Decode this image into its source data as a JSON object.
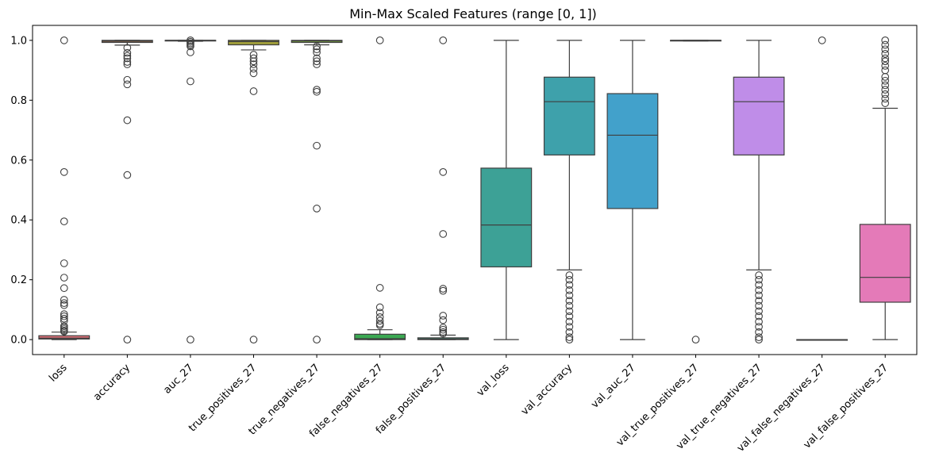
{
  "chart_data": {
    "type": "box",
    "title": "Min-Max Scaled Features (range [0, 1])",
    "xlabel": "",
    "ylabel": "",
    "ylim": [
      -0.05,
      1.05
    ],
    "yticks": [
      "0.0",
      "0.2",
      "0.4",
      "0.6",
      "0.8",
      "1.0"
    ],
    "grid": false,
    "legend": "none",
    "series": [
      {
        "name": "loss",
        "color": "#e1727a",
        "q1": 0.002,
        "median": 0.005,
        "q3": 0.013,
        "whisker_low": 0.0,
        "whisker_high": 0.025,
        "outliers": [
          1.0,
          0.56,
          0.395,
          0.255,
          0.207,
          0.172,
          0.133,
          0.122,
          0.115,
          0.085,
          0.078,
          0.07,
          0.063,
          0.045,
          0.04,
          0.035,
          0.03,
          0.027
        ]
      },
      {
        "name": "accuracy",
        "color": "#d08a58",
        "q1": 0.993,
        "median": 0.997,
        "q3": 1.0,
        "whisker_low": 0.984,
        "whisker_high": 1.0,
        "outliers": [
          0.975,
          0.958,
          0.948,
          0.94,
          0.928,
          0.92,
          0.868,
          0.853,
          0.733,
          0.55,
          0.0
        ]
      },
      {
        "name": "auc_27",
        "color": "#b79a48",
        "q1": 0.999,
        "median": 1.0,
        "q3": 1.0,
        "whisker_low": 0.997,
        "whisker_high": 1.0,
        "outliers": [
          1.0,
          0.995,
          0.99,
          0.985,
          0.98,
          0.96,
          0.863,
          0.0
        ]
      },
      {
        "name": "true_positives_27",
        "color": "#a09e3a",
        "q1": 0.985,
        "median": 0.996,
        "q3": 1.0,
        "whisker_low": 0.968,
        "whisker_high": 1.0,
        "outliers": [
          0.952,
          0.94,
          0.93,
          0.92,
          0.905,
          0.89,
          0.83,
          0.0
        ]
      },
      {
        "name": "true_negatives_27",
        "color": "#7aa73e",
        "q1": 0.993,
        "median": 0.998,
        "q3": 1.0,
        "whisker_low": 0.985,
        "whisker_high": 1.0,
        "outliers": [
          0.98,
          0.97,
          0.96,
          0.94,
          0.93,
          0.92,
          0.835,
          0.828,
          0.648,
          0.438,
          0.0
        ]
      },
      {
        "name": "false_negatives_27",
        "color": "#3ba852",
        "q1": 0.0,
        "median": 0.003,
        "q3": 0.018,
        "whisker_low": 0.0,
        "whisker_high": 0.033,
        "outliers": [
          1.0,
          0.173,
          0.108,
          0.09,
          0.075,
          0.063,
          0.053,
          0.048
        ]
      },
      {
        "name": "false_positives_27",
        "color": "#3ca07f",
        "q1": 0.0,
        "median": 0.002,
        "q3": 0.006,
        "whisker_low": 0.0,
        "whisker_high": 0.015,
        "outliers": [
          1.0,
          0.56,
          0.353,
          0.17,
          0.163,
          0.08,
          0.065,
          0.04,
          0.033,
          0.025,
          0.02
        ]
      },
      {
        "name": "val_loss",
        "color": "#3da196",
        "q1": 0.243,
        "median": 0.383,
        "q3": 0.573,
        "whisker_low": 0.0,
        "whisker_high": 1.0,
        "outliers": []
      },
      {
        "name": "val_accuracy",
        "color": "#3ea1ab",
        "q1": 0.617,
        "median": 0.795,
        "q3": 0.877,
        "whisker_low": 0.233,
        "whisker_high": 1.0,
        "outliers": [
          0.215,
          0.2,
          0.183,
          0.165,
          0.148,
          0.13,
          0.113,
          0.095,
          0.078,
          0.06,
          0.043,
          0.025,
          0.008,
          0.0
        ]
      },
      {
        "name": "val_auc_27",
        "color": "#42a1cb",
        "q1": 0.438,
        "median": 0.683,
        "q3": 0.822,
        "whisker_low": 0.0,
        "whisker_high": 1.0,
        "outliers": []
      },
      {
        "name": "val_true_positives_27",
        "color": "#7b8ee0",
        "q1": 0.999,
        "median": 1.0,
        "q3": 1.0,
        "whisker_low": 0.998,
        "whisker_high": 1.0,
        "outliers": [
          0.0
        ]
      },
      {
        "name": "val_true_negatives_27",
        "color": "#bf8de8",
        "q1": 0.617,
        "median": 0.795,
        "q3": 0.877,
        "whisker_low": 0.233,
        "whisker_high": 1.0,
        "outliers": [
          0.215,
          0.2,
          0.183,
          0.165,
          0.148,
          0.13,
          0.113,
          0.095,
          0.078,
          0.06,
          0.043,
          0.025,
          0.008,
          0.0
        ]
      },
      {
        "name": "val_false_negatives_27",
        "color": "#dc86d4",
        "q1": 0.0,
        "median": 0.0,
        "q3": 0.0,
        "whisker_low": 0.0,
        "whisker_high": 0.0,
        "outliers": [
          1.0
        ]
      },
      {
        "name": "val_false_positives_27",
        "color": "#e47ab8",
        "q1": 0.125,
        "median": 0.208,
        "q3": 0.385,
        "whisker_low": 0.0,
        "whisker_high": 0.773,
        "outliers": [
          1.0,
          0.985,
          0.97,
          0.955,
          0.94,
          0.93,
          0.915,
          0.9,
          0.878,
          0.865,
          0.85,
          0.835,
          0.82,
          0.805,
          0.79
        ]
      }
    ]
  }
}
